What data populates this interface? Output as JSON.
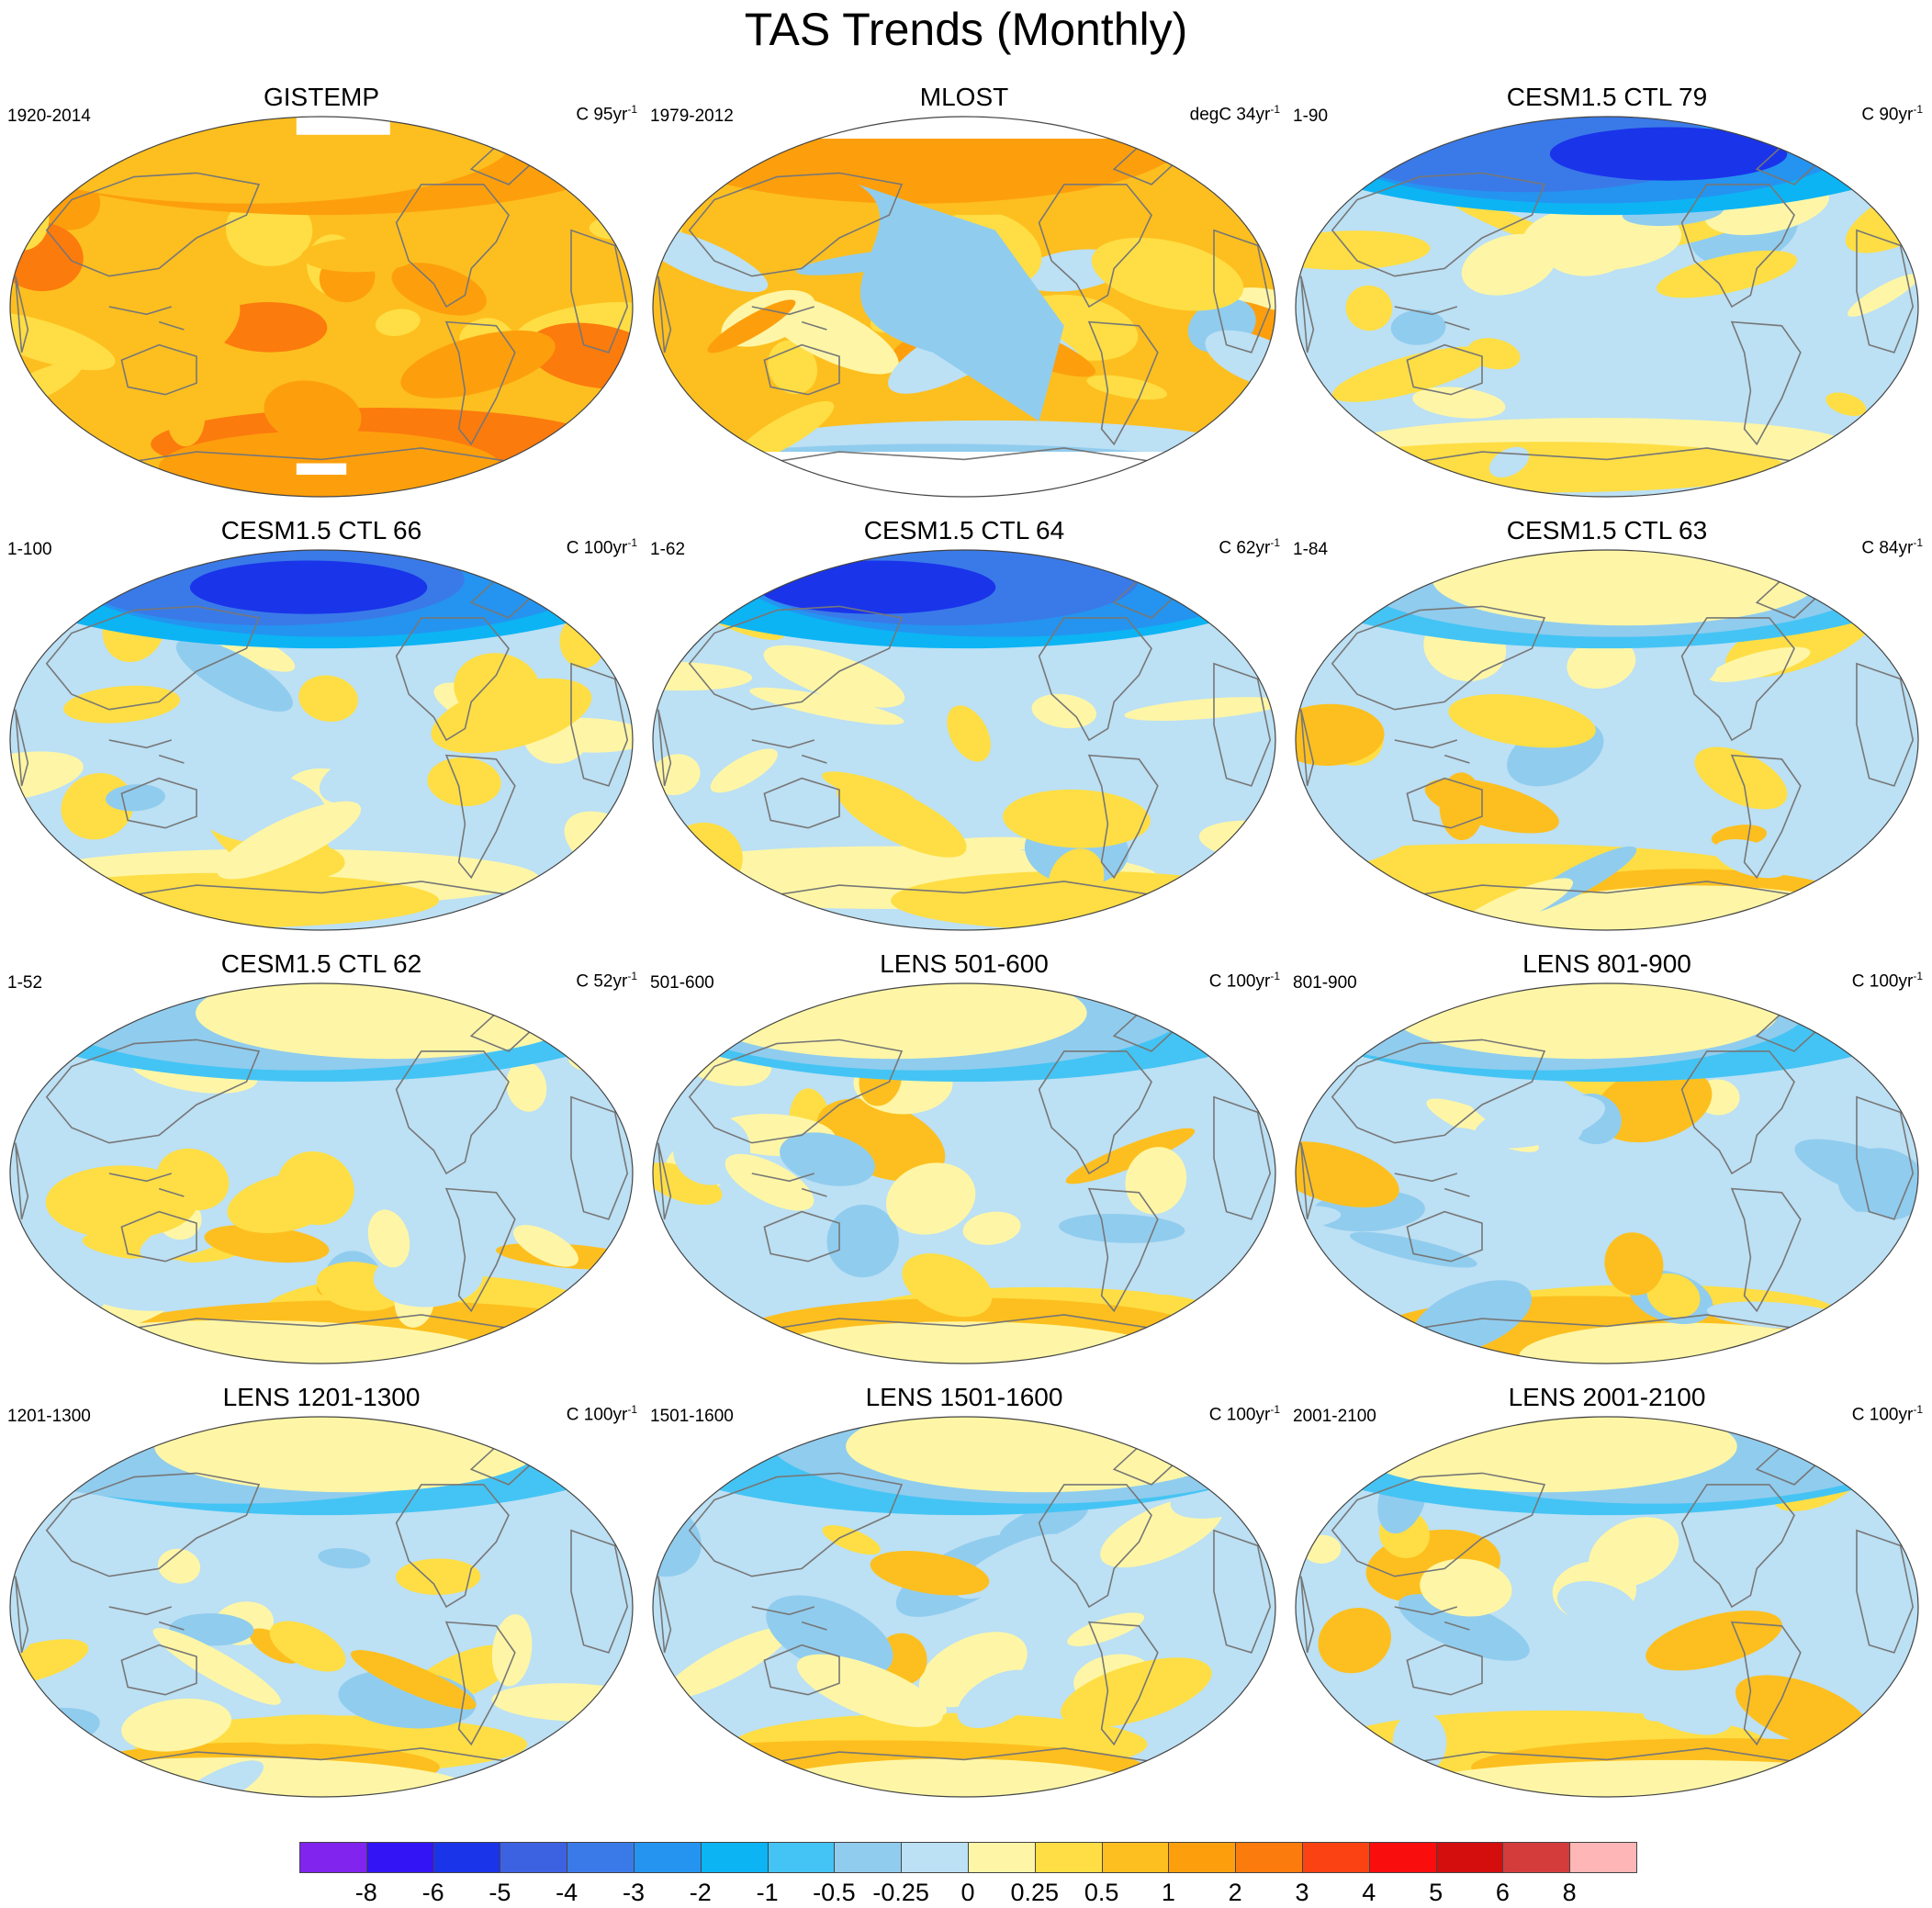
{
  "title": "TAS Trends (Monthly)",
  "panels": [
    {
      "title": "GISTEMP",
      "left": "1920-2014",
      "unit": "C 95yr",
      "sup": "-1",
      "pattern": "warm"
    },
    {
      "title": "MLOST",
      "left": "1979-2012",
      "unit": "degC 34yr",
      "sup": "-1",
      "pattern": "mlost"
    },
    {
      "title": "CESM1.5 CTL 79",
      "left": "1-90",
      "unit": "C 90yr",
      "sup": "-1",
      "pattern": "cold"
    },
    {
      "title": "CESM1.5 CTL 66",
      "left": "1-100",
      "unit": "C 100yr",
      "sup": "-1",
      "pattern": "cold"
    },
    {
      "title": "CESM1.5 CTL 64",
      "left": "1-62",
      "unit": "C 62yr",
      "sup": "-1",
      "pattern": "cold"
    },
    {
      "title": "CESM1.5 CTL 63",
      "left": "1-84",
      "unit": "C 84yr",
      "sup": "-1",
      "pattern": "mixed"
    },
    {
      "title": "CESM1.5 CTL 62",
      "left": "1-52",
      "unit": "C 52yr",
      "sup": "-1",
      "pattern": "mixed"
    },
    {
      "title": "LENS 501-600",
      "left": "501-600",
      "unit": "C 100yr",
      "sup": "-1",
      "pattern": "mixed"
    },
    {
      "title": "LENS 801-900",
      "left": "801-900",
      "unit": "C 100yr",
      "sup": "-1",
      "pattern": "mixed"
    },
    {
      "title": "LENS 1201-1300",
      "left": "1201-1300",
      "unit": "C 100yr",
      "sup": "-1",
      "pattern": "mixed"
    },
    {
      "title": "LENS 1501-1600",
      "left": "1501-1600",
      "unit": "C 100yr",
      "sup": "-1",
      "pattern": "mixed"
    },
    {
      "title": "LENS 2001-2100",
      "left": "2001-2100",
      "unit": "C 100yr",
      "sup": "-1",
      "pattern": "mixed"
    }
  ],
  "colorbar": {
    "colors": [
      "#8024ee",
      "#3214f5",
      "#1a34ea",
      "#3c62e2",
      "#3a7ae8",
      "#2494f0",
      "#0cb4f4",
      "#44c4f4",
      "#90ccee",
      "#bce0f4",
      "#fef6a6",
      "#fede44",
      "#fdbf1f",
      "#fd9f0c",
      "#fc7b0d",
      "#fb4212",
      "#f90d0d",
      "#d40d0d",
      "#d43c3c",
      "#feb6b6"
    ],
    "labels": [
      "-8",
      "-6",
      "-5",
      "-4",
      "-3",
      "-2",
      "-1",
      "-0.5",
      "-0.25",
      "0",
      "0.25",
      "0.5",
      "1",
      "2",
      "3",
      "4",
      "5",
      "6",
      "8"
    ]
  }
}
